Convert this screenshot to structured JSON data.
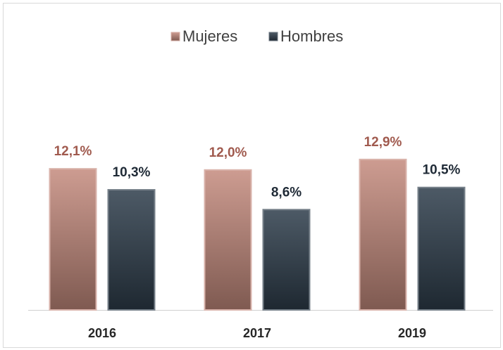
{
  "chart_data": {
    "type": "bar",
    "categories": [
      "2016",
      "2017",
      "2019"
    ],
    "series": [
      {
        "name": "Mujeres",
        "color": "#c48a7d",
        "label_color": "#a05a4e",
        "values": [
          12.1,
          12.0,
          12.9
        ],
        "value_labels": [
          "12,1%",
          "12,0%",
          "12,9%"
        ]
      },
      {
        "name": "Hombres",
        "color": "#2e3d4b",
        "label_color": "#1f2a36",
        "values": [
          10.3,
          8.6,
          10.5
        ],
        "value_labels": [
          "10,3%",
          "8,6%",
          "10,5%"
        ]
      }
    ],
    "legend": "top"
  }
}
